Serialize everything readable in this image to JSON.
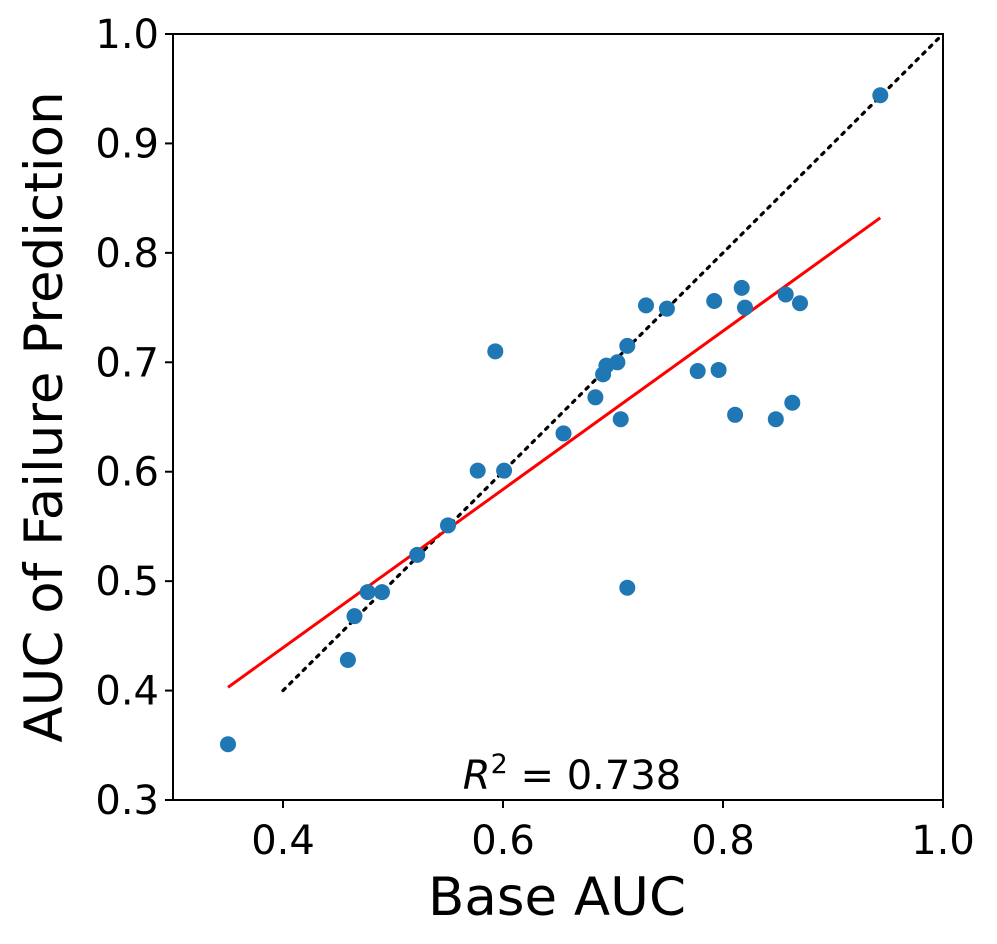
{
  "chart_data": {
    "type": "scatter",
    "title": "",
    "xlabel": "Base AUC",
    "ylabel": "AUC of Failure Prediction",
    "xlim": [
      0.3,
      1.0
    ],
    "ylim": [
      0.3,
      1.0
    ],
    "xticks": [
      "0.4",
      "0.6",
      "0.8",
      "1.0"
    ],
    "yticks": [
      "0.3",
      "0.4",
      "0.5",
      "0.6",
      "0.7",
      "0.8",
      "0.9",
      "1.0"
    ],
    "grid": false,
    "points": [
      {
        "x": 0.35,
        "y": 0.351
      },
      {
        "x": 0.459,
        "y": 0.428
      },
      {
        "x": 0.465,
        "y": 0.468
      },
      {
        "x": 0.477,
        "y": 0.49
      },
      {
        "x": 0.49,
        "y": 0.49
      },
      {
        "x": 0.522,
        "y": 0.524
      },
      {
        "x": 0.55,
        "y": 0.551
      },
      {
        "x": 0.577,
        "y": 0.601
      },
      {
        "x": 0.593,
        "y": 0.71
      },
      {
        "x": 0.601,
        "y": 0.601
      },
      {
        "x": 0.655,
        "y": 0.635
      },
      {
        "x": 0.684,
        "y": 0.668
      },
      {
        "x": 0.691,
        "y": 0.689
      },
      {
        "x": 0.694,
        "y": 0.697
      },
      {
        "x": 0.704,
        "y": 0.7
      },
      {
        "x": 0.707,
        "y": 0.648
      },
      {
        "x": 0.713,
        "y": 0.494
      },
      {
        "x": 0.713,
        "y": 0.715
      },
      {
        "x": 0.73,
        "y": 0.752
      },
      {
        "x": 0.749,
        "y": 0.749
      },
      {
        "x": 0.777,
        "y": 0.692
      },
      {
        "x": 0.792,
        "y": 0.756
      },
      {
        "x": 0.796,
        "y": 0.693
      },
      {
        "x": 0.811,
        "y": 0.652
      },
      {
        "x": 0.817,
        "y": 0.768
      },
      {
        "x": 0.82,
        "y": 0.75
      },
      {
        "x": 0.848,
        "y": 0.648
      },
      {
        "x": 0.857,
        "y": 0.762
      },
      {
        "x": 0.863,
        "y": 0.663
      },
      {
        "x": 0.87,
        "y": 0.754
      },
      {
        "x": 0.943,
        "y": 0.944
      }
    ],
    "point_color": "#1f77b4",
    "fit_line": {
      "x": [
        0.35,
        0.943
      ],
      "y": [
        0.403,
        0.832
      ],
      "color": "#ff0000"
    },
    "identity_line": {
      "x": [
        0.4,
        1.0
      ],
      "y": [
        0.4,
        1.0
      ],
      "color": "#000000",
      "style": "dotted"
    },
    "annotation": {
      "symbol": "R",
      "exponent": "2",
      "equals": " = ",
      "value": "0.738",
      "position": "bottom-center"
    }
  }
}
